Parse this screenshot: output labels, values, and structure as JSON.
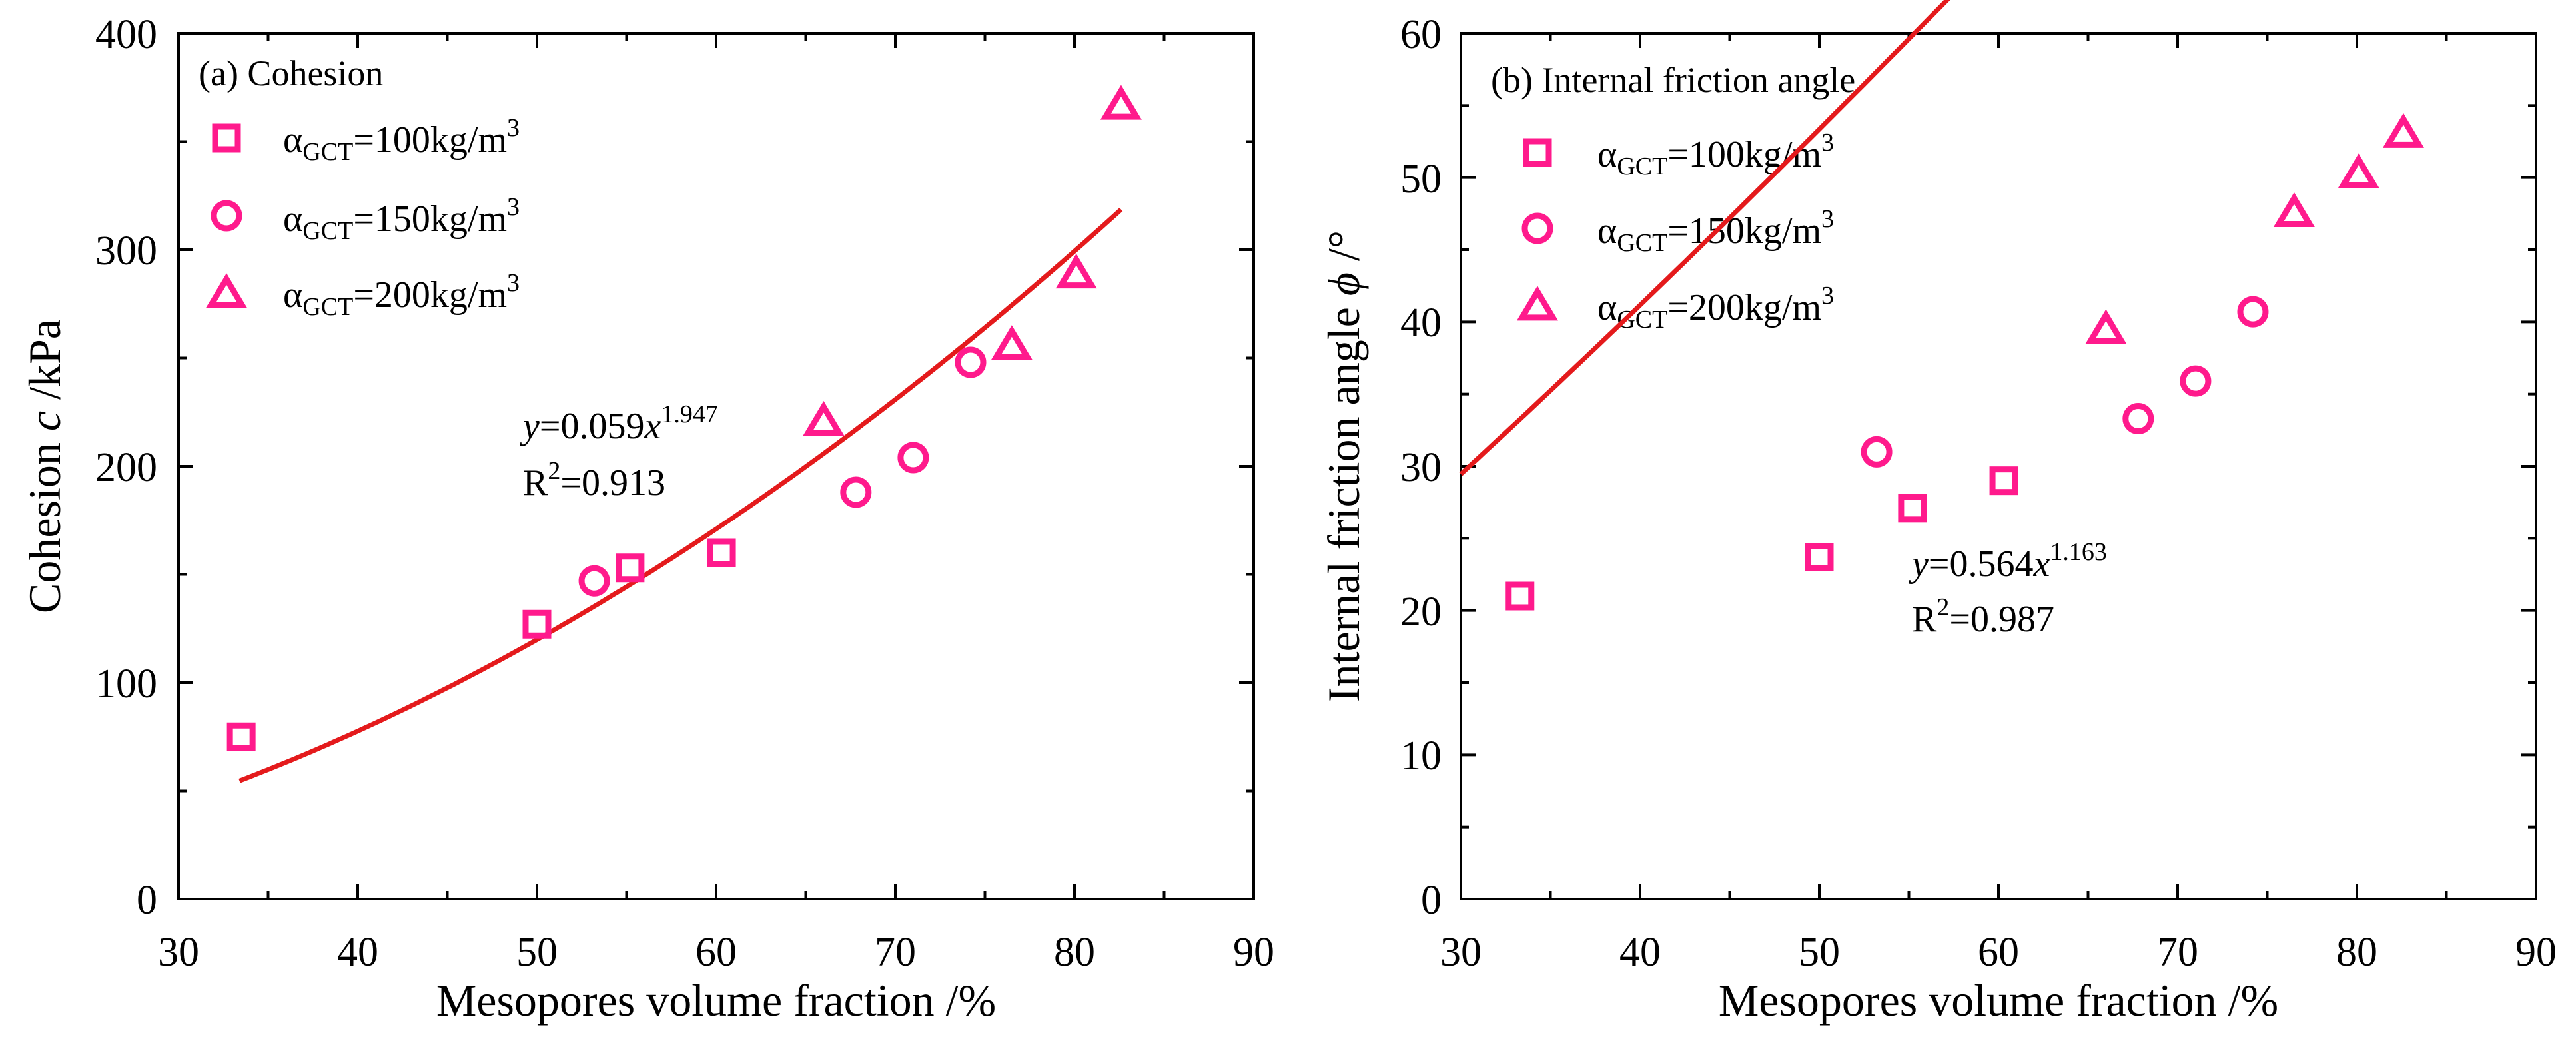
{
  "chart_data": [
    {
      "type": "scatter",
      "panel_label": "(a) Cohesion",
      "xlabel": "Mesopores volume fraction /%",
      "ylabel_prefix": "Cohesion ",
      "ylabel_symbol": "c",
      "ylabel_suffix": " /kPa",
      "xlim": [
        30,
        90
      ],
      "ylim": [
        0,
        400
      ],
      "xticks": [
        "30",
        "40",
        "50",
        "60",
        "70",
        "80",
        "90"
      ],
      "yticks": [
        "0",
        "100",
        "200",
        "300",
        "400"
      ],
      "marker_color": "#ff1a8c",
      "fit_color": "#e41a1c",
      "legend": {
        "alpha": "α",
        "sub": "GCT",
        "sup": "3",
        "entries": [
          {
            "label": "=100kg/m",
            "marker": "square"
          },
          {
            "label": "=150kg/m",
            "marker": "circle"
          },
          {
            "label": "=200kg/m",
            "marker": "triangle"
          }
        ]
      },
      "series": [
        {
          "name": "αGCT=100kg/m3",
          "marker": "square",
          "x": [
            33.5,
            50.0,
            55.2,
            60.3
          ],
          "y": [
            75,
            127,
            153,
            160
          ]
        },
        {
          "name": "αGCT=150kg/m3",
          "marker": "circle",
          "x": [
            53.2,
            67.8,
            71.0,
            74.2
          ],
          "y": [
            147,
            188,
            204,
            248
          ]
        },
        {
          "name": "αGCT=200kg/m3",
          "marker": "triangle",
          "x": [
            66.0,
            76.5,
            80.1,
            82.6
          ],
          "y": [
            221,
            256,
            289,
            367
          ]
        }
      ],
      "fit": {
        "a": 0.059,
        "b": 1.947,
        "x_range": [
          33.4,
          82.6
        ],
        "eq_y": "y",
        "eq_mid": "=0.059",
        "eq_x": "x",
        "eq_exp": "1.947",
        "r2_prefix": "R",
        "r2_sup": "2",
        "r2_value": "=0.913"
      }
    },
    {
      "type": "scatter",
      "panel_label": "(b) Internal friction angle",
      "xlabel": "Mesopores volume fraction /%",
      "ylabel_prefix": "Internal friction angle ",
      "ylabel_symbol": "ϕ",
      "ylabel_suffix": " /°",
      "xlim": [
        30,
        90
      ],
      "ylim": [
        0,
        60
      ],
      "xticks": [
        "30",
        "40",
        "50",
        "60",
        "70",
        "80",
        "90"
      ],
      "yticks": [
        "0",
        "10",
        "20",
        "30",
        "40",
        "50",
        "60"
      ],
      "marker_color": "#ff1a8c",
      "fit_color": "#e41a1c",
      "legend": {
        "alpha": "α",
        "sub": "GCT",
        "sup": "3",
        "entries": [
          {
            "label": "=100kg/m",
            "marker": "square"
          },
          {
            "label": "=150kg/m",
            "marker": "circle"
          },
          {
            "label": "=200kg/m",
            "marker": "triangle"
          }
        ]
      },
      "series": [
        {
          "name": "αGCT=100kg/m3",
          "marker": "square",
          "x": [
            33.3,
            50.0,
            55.2,
            60.3
          ],
          "y": [
            21.0,
            23.7,
            27.1,
            29.0
          ]
        },
        {
          "name": "αGCT=150kg/m3",
          "marker": "circle",
          "x": [
            53.2,
            67.8,
            71.0,
            74.2
          ],
          "y": [
            31.0,
            33.3,
            35.9,
            40.7
          ]
        },
        {
          "name": "αGCT=200kg/m3",
          "marker": "triangle",
          "x": [
            66.0,
            76.5,
            80.1,
            82.6
          ],
          "y": [
            39.5,
            47.6,
            50.3,
            53.1
          ]
        }
      ],
      "fit": {
        "a": 0.564,
        "b": 1.163,
        "x_range": [
          30,
          90
        ],
        "eq_y": "y",
        "eq_mid": "=0.564",
        "eq_x": "x",
        "eq_exp": "1.163",
        "r2_prefix": "R",
        "r2_sup": "2",
        "r2_value": "=0.987"
      }
    }
  ]
}
